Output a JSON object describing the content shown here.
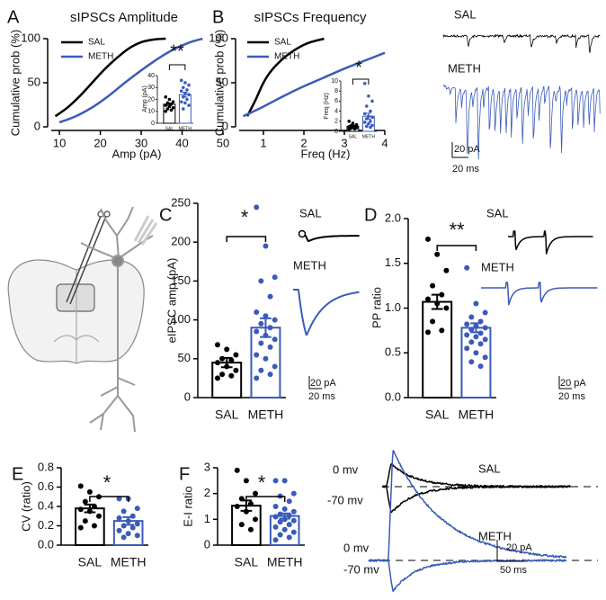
{
  "chart_data": [
    {
      "type": "line",
      "panel": "A",
      "title": "sIPSCs Amplitude",
      "xlabel": "Amp (pA)",
      "ylabel": "Cumulative prob (%)",
      "xlim": [
        8,
        50
      ],
      "xticks": [
        10,
        20,
        30,
        40,
        50
      ],
      "ylim": [
        0,
        100
      ],
      "yticks": [
        0,
        50,
        100
      ],
      "series": [
        {
          "name": "SAL",
          "color": "#000000",
          "x": [
            9,
            12,
            15,
            18,
            21,
            24,
            27,
            30,
            33,
            36
          ],
          "values": [
            12,
            22,
            35,
            50,
            65,
            78,
            89,
            96,
            99,
            100
          ]
        },
        {
          "name": "METH",
          "color": "#3a5bb8",
          "x": [
            10,
            14,
            18,
            22,
            26,
            30,
            34,
            38,
            42,
            45
          ],
          "values": [
            5,
            12,
            22,
            35,
            50,
            64,
            77,
            88,
            96,
            100
          ]
        }
      ]
    },
    {
      "type": "bar",
      "ylabel": "Amp (pA)",
      "annotation": "**",
      "categories": [
        "SAL",
        "METH"
      ],
      "values": [
        16,
        24
      ],
      "errors": [
        1,
        2
      ],
      "colors": [
        "#000000",
        "#3a5bb8"
      ],
      "ylim": [
        0,
        40
      ],
      "yticks": [
        0,
        10,
        20,
        30,
        40
      ],
      "points": [
        [
          22,
          20,
          18,
          17,
          16,
          15,
          14,
          13,
          12,
          11,
          10
        ],
        [
          36,
          34,
          32,
          30,
          28,
          27,
          25,
          24,
          22,
          20,
          18,
          17,
          15,
          12
        ]
      ]
    },
    {
      "type": "line",
      "panel": "B",
      "title": "sIPSCs Frequency",
      "xlabel": "Freq (Hz)",
      "ylabel": "Cumulative prob (%)",
      "xlim": [
        0.4,
        4
      ],
      "xticks": [
        1,
        2,
        3,
        4
      ],
      "ylim": [
        0,
        100
      ],
      "yticks": [
        0,
        50,
        100
      ],
      "series": [
        {
          "name": "SAL",
          "color": "#000000",
          "x": [
            0.6,
            0.8,
            1.0,
            1.2,
            1.5,
            1.8,
            2.1,
            2.5
          ],
          "values": [
            12,
            30,
            50,
            64,
            78,
            88,
            95,
            100
          ]
        },
        {
          "name": "METH",
          "color": "#3a5bb8",
          "x": [
            0.5,
            1,
            1.5,
            2,
            2.5,
            3,
            3.5,
            4
          ],
          "values": [
            12,
            23,
            35,
            46,
            56,
            66,
            75,
            84
          ]
        }
      ]
    },
    {
      "type": "bar",
      "ylabel": "Freq (Hz)",
      "annotation": "*",
      "categories": [
        "SAL",
        "METH"
      ],
      "values": [
        1,
        3
      ],
      "errors": [
        0.2,
        0.6
      ],
      "colors": [
        "#000000",
        "#3a5bb8"
      ],
      "ylim": [
        0,
        10
      ],
      "yticks": [
        0,
        2,
        4,
        6,
        8,
        10
      ],
      "points": [
        [
          2,
          1.6,
          1.3,
          1.1,
          1,
          0.9,
          0.8,
          0.7,
          0.6,
          0.5,
          0.4
        ],
        [
          9.5,
          7,
          6,
          5,
          4,
          3.5,
          3,
          2.8,
          2.5,
          2,
          1.8,
          1.5,
          1.2,
          1,
          0.8
        ]
      ]
    },
    {
      "type": "bar",
      "panel": "C",
      "ylabel": "eIPSC amp (pA)",
      "annotation": "*",
      "categories": [
        "SAL",
        "METH"
      ],
      "values": [
        45,
        90
      ],
      "errors": [
        6,
        12
      ],
      "colors": [
        "#000000",
        "#3a5bb8"
      ],
      "ylim": [
        0,
        250
      ],
      "yticks": [
        0,
        50,
        100,
        150,
        200,
        250
      ],
      "points": [
        [
          68,
          62,
          55,
          50,
          48,
          45,
          40,
          35,
          30,
          28,
          25
        ],
        [
          245,
          195,
          155,
          150,
          130,
          110,
          105,
          100,
          95,
          90,
          85,
          80,
          75,
          70,
          65,
          55,
          50,
          40,
          35,
          30,
          25
        ]
      ]
    },
    {
      "type": "bar",
      "panel": "D",
      "ylabel": "PP ratio",
      "annotation": "**",
      "categories": [
        "SAL",
        "METH"
      ],
      "values": [
        1.07,
        0.78
      ],
      "errors": [
        0.08,
        0.05
      ],
      "colors": [
        "#000000",
        "#3a5bb8"
      ],
      "ylim": [
        0,
        2
      ],
      "yticks": [
        {
          "value": 0,
          "label": "0.0"
        },
        {
          "value": 0.5,
          "label": "0.5"
        },
        {
          "value": 1,
          "label": "1.0"
        },
        {
          "value": 1.5,
          "label": "1.5"
        },
        {
          "value": 2,
          "label": "2.0"
        }
      ],
      "points": [
        [
          1.77,
          1.6,
          1.42,
          1.25,
          1.15,
          1.1,
          1.05,
          1,
          0.85,
          0.75,
          0.73
        ],
        [
          1.45,
          1.05,
          0.95,
          0.9,
          0.85,
          0.82,
          0.8,
          0.78,
          0.76,
          0.72,
          0.7,
          0.68,
          0.65,
          0.62,
          0.6,
          0.55,
          0.5,
          0.45,
          0.4,
          0.35
        ]
      ]
    },
    {
      "type": "bar",
      "panel": "E",
      "ylabel": "CV (ratio)",
      "annotation": "*",
      "categories": [
        "SAL",
        "METH"
      ],
      "values": [
        0.38,
        0.25
      ],
      "errors": [
        0.04,
        0.04
      ],
      "colors": [
        "#000000",
        "#3a5bb8"
      ],
      "ylim": [
        0,
        0.8
      ],
      "yticks": [
        {
          "value": 0,
          "label": "0.0"
        },
        0.2,
        0.4,
        0.6,
        0.8
      ],
      "points": [
        [
          0.61,
          0.55,
          0.5,
          0.45,
          0.4,
          0.37,
          0.35,
          0.3,
          0.25,
          0.2,
          0.18
        ],
        [
          0.48,
          0.48,
          0.38,
          0.35,
          0.3,
          0.28,
          0.25,
          0.22,
          0.2,
          0.18,
          0.15,
          0.12,
          0.1,
          0.08
        ]
      ]
    },
    {
      "type": "bar",
      "panel": "F",
      "ylabel": "E-I ratio",
      "annotation": "*",
      "categories": [
        "SAL",
        "METH"
      ],
      "values": [
        1.53,
        1.13
      ],
      "errors": [
        0.2,
        0.1
      ],
      "colors": [
        "#000000",
        "#3a5bb8"
      ],
      "ylim": [
        0,
        3
      ],
      "yticks": [
        0,
        1,
        2,
        3
      ],
      "points": [
        [
          2.9,
          2.5,
          2,
          1.8,
          1.6,
          1.5,
          1.3,
          1,
          0.8,
          0.6
        ],
        [
          2.5,
          2.5,
          2,
          1.9,
          1.7,
          1.5,
          1.4,
          1.3,
          1.2,
          1.15,
          1.1,
          1,
          0.95,
          0.9,
          0.8,
          0.7,
          0.6,
          0.5,
          0.4,
          0.3,
          0.2
        ]
      ]
    }
  ],
  "traces": {
    "top": {
      "labels": [
        "SAL",
        "METH"
      ],
      "scale": [
        "20 pA",
        "20 ms"
      ]
    },
    "eipsc": {
      "labels": [
        "SAL",
        "METH"
      ],
      "scale": [
        "20 pA",
        "20 ms"
      ]
    },
    "pp": {
      "labels": [
        "SAL",
        "METH"
      ],
      "scale": [
        "20 pA",
        "20 ms"
      ]
    },
    "ei": {
      "labels": [
        "SAL",
        "METH"
      ],
      "potentials": [
        "0 mv",
        "-70 mv",
        "0 mv",
        "-70 mv"
      ],
      "scale": [
        "20 pA",
        "50 ms"
      ]
    }
  }
}
